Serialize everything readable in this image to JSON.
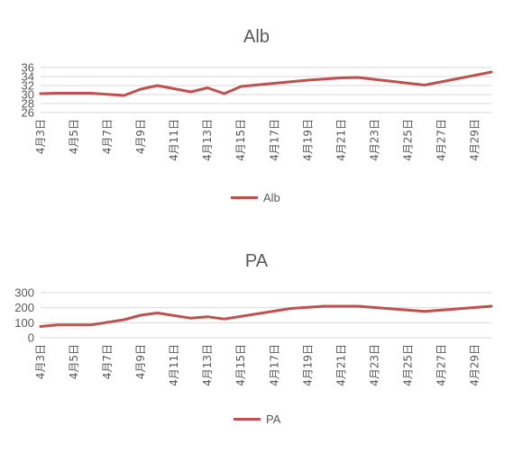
{
  "chart_data": [
    {
      "id": "alb",
      "type": "line",
      "title": "Alb",
      "xlabel": "",
      "ylabel": "",
      "ylim": [
        26,
        36
      ],
      "y_ticks": [
        26,
        28,
        30,
        32,
        34,
        36
      ],
      "x_tick_labels": [
        "4月3日",
        "4月5日",
        "4月7日",
        "4月9日",
        "4月11日",
        "4月13日",
        "4月15日",
        "4月17日",
        "4月19日",
        "4月21日",
        "4月23日",
        "4月25日",
        "4月27日",
        "4月29日"
      ],
      "grid": true,
      "legend_position": "bottom",
      "series": [
        {
          "name": "Alb",
          "color": "#C0504D",
          "points": [
            {
              "x": "4月3日",
              "y": 30.2
            },
            {
              "x": "4月4日",
              "y": 30.3
            },
            {
              "x": "4月6日",
              "y": 30.3
            },
            {
              "x": "4月8日",
              "y": 29.8
            },
            {
              "x": "4月9日",
              "y": 31.2
            },
            {
              "x": "4月10日",
              "y": 32.0
            },
            {
              "x": "4月12日",
              "y": 30.6
            },
            {
              "x": "4月13日",
              "y": 31.5
            },
            {
              "x": "4月14日",
              "y": 30.2
            },
            {
              "x": "4月15日",
              "y": 31.8
            },
            {
              "x": "4月19日",
              "y": 33.2
            },
            {
              "x": "4月21日",
              "y": 33.7
            },
            {
              "x": "4月22日",
              "y": 33.8
            },
            {
              "x": "4月26日",
              "y": 32.1
            },
            {
              "x": "4月30日",
              "y": 35.0
            }
          ]
        }
      ]
    },
    {
      "id": "pa",
      "type": "line",
      "title": "PA",
      "xlabel": "",
      "ylabel": "",
      "ylim": [
        0,
        300
      ],
      "y_ticks": [
        0,
        100,
        200,
        300
      ],
      "x_tick_labels": [
        "4月3日",
        "4月5日",
        "4月7日",
        "4月9日",
        "4月11日",
        "4月13日",
        "4月15日",
        "4月17日",
        "4月19日",
        "4月21日",
        "4月23日",
        "4月25日",
        "4月27日",
        "4月29日"
      ],
      "grid": true,
      "legend_position": "bottom",
      "series": [
        {
          "name": "PA",
          "color": "#C0504D",
          "points": [
            {
              "x": "4月3日",
              "y": 75
            },
            {
              "x": "4月4日",
              "y": 85
            },
            {
              "x": "4月6日",
              "y": 85
            },
            {
              "x": "4月8日",
              "y": 120
            },
            {
              "x": "4月9日",
              "y": 150
            },
            {
              "x": "4月10日",
              "y": 165
            },
            {
              "x": "4月12日",
              "y": 130
            },
            {
              "x": "4月13日",
              "y": 140
            },
            {
              "x": "4月14日",
              "y": 125
            },
            {
              "x": "4月18日",
              "y": 195
            },
            {
              "x": "4月20日",
              "y": 210
            },
            {
              "x": "4月22日",
              "y": 210
            },
            {
              "x": "4月26日",
              "y": 175
            },
            {
              "x": "4月30日",
              "y": 210
            }
          ]
        }
      ]
    }
  ]
}
